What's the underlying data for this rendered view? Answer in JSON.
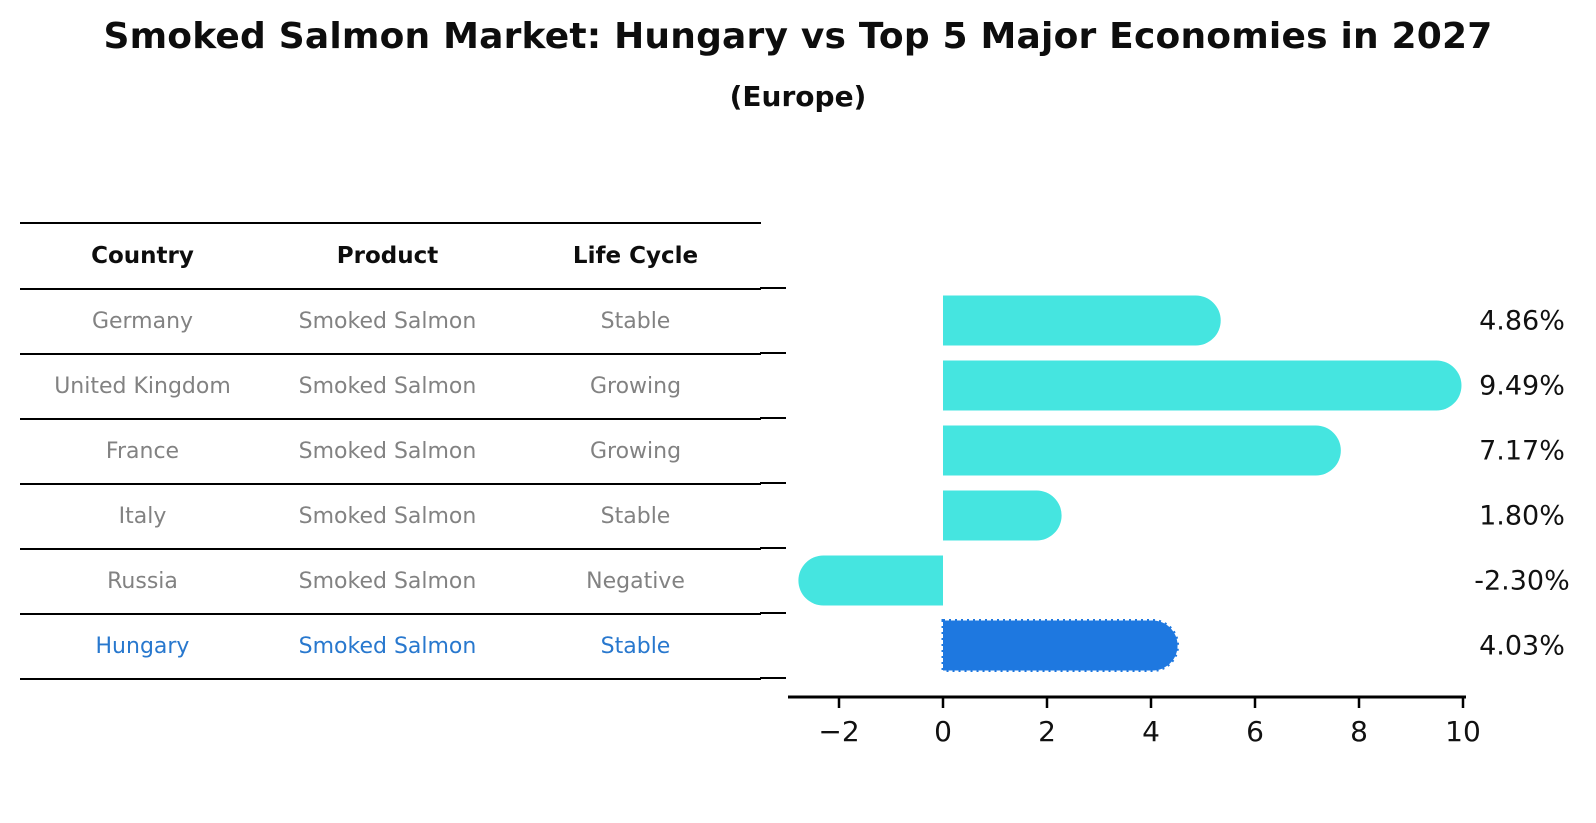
{
  "title": "Smoked Salmon Market: Hungary vs Top 5 Major Economies in 2027",
  "subtitle": "(Europe)",
  "table": {
    "headers": [
      "Country",
      "Product",
      "Life Cycle"
    ],
    "rows": [
      {
        "country": "Germany",
        "product": "Smoked Salmon",
        "life_cycle": "Stable",
        "highlighted": false
      },
      {
        "country": "United Kingdom",
        "product": "Smoked Salmon",
        "life_cycle": "Growing",
        "highlighted": false
      },
      {
        "country": "France",
        "product": "Smoked Salmon",
        "life_cycle": "Growing",
        "highlighted": false
      },
      {
        "country": "Italy",
        "product": "Smoked Salmon",
        "life_cycle": "Stable",
        "highlighted": false
      },
      {
        "country": "Russia",
        "product": "Smoked Salmon",
        "life_cycle": "Negative",
        "highlighted": false
      },
      {
        "country": "Hungary",
        "product": "Smoked Salmon",
        "life_cycle": "Stable",
        "highlighted": true
      }
    ]
  },
  "chart_data": {
    "type": "bar",
    "orientation": "horizontal",
    "title": "Smoked Salmon Market: Hungary vs Top 5 Major Economies in 2027",
    "subtitle": "(Europe)",
    "categories": [
      "Germany",
      "United Kingdom",
      "France",
      "Italy",
      "Russia",
      "Hungary"
    ],
    "values": [
      4.86,
      9.49,
      7.17,
      1.8,
      -2.3,
      4.03
    ],
    "value_labels": [
      "4.86%",
      "9.49%",
      "7.17%",
      "1.80%",
      "-2.30%",
      "4.03%"
    ],
    "x_ticks": [
      -2,
      0,
      2,
      4,
      6,
      8,
      10
    ],
    "xlim": [
      -2.95,
      10.05
    ],
    "xlabel": "",
    "ylabel": "",
    "grid": false,
    "legend": "none",
    "bar_color": "#45E5E0",
    "highlight_bar_color": "#1E78E0",
    "highlight_index": 5,
    "highlight_border_style": "dotted",
    "value_label_color": "#111111",
    "axis_color": "#000000"
  },
  "colors": {
    "background": "#ffffff",
    "title_text": "#0d0d0d",
    "table_text": "#828282",
    "highlight_text": "#2878CE",
    "table_line": "#000000"
  }
}
